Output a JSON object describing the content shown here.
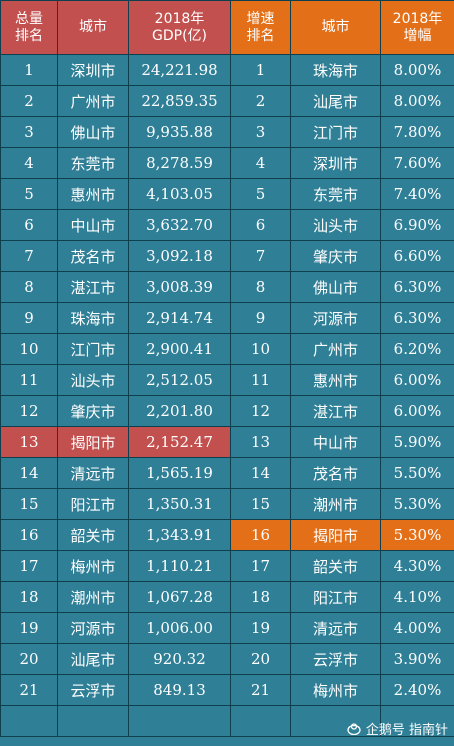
{
  "headers": {
    "rank_total": "总量\n排名",
    "city_left": "城市",
    "gdp": "2018年\nGDP(亿)",
    "rank_speed": "增速\n排名",
    "city_right": "城市",
    "growth": "2018年\n增幅"
  },
  "highlight": {
    "left_row": 13,
    "right_row": 16
  },
  "rows": [
    {
      "rank_total": "1",
      "city_left": "深圳市",
      "gdp": "24,221.98",
      "rank_speed": "1",
      "city_right": "珠海市",
      "growth": "8.00%"
    },
    {
      "rank_total": "2",
      "city_left": "广州市",
      "gdp": "22,859.35",
      "rank_speed": "2",
      "city_right": "汕尾市",
      "growth": "8.00%"
    },
    {
      "rank_total": "3",
      "city_left": "佛山市",
      "gdp": "9,935.88",
      "rank_speed": "3",
      "city_right": "江门市",
      "growth": "7.80%"
    },
    {
      "rank_total": "4",
      "city_left": "东莞市",
      "gdp": "8,278.59",
      "rank_speed": "4",
      "city_right": "深圳市",
      "growth": "7.60%"
    },
    {
      "rank_total": "5",
      "city_left": "惠州市",
      "gdp": "4,103.05",
      "rank_speed": "5",
      "city_right": "东莞市",
      "growth": "7.40%"
    },
    {
      "rank_total": "6",
      "city_left": "中山市",
      "gdp": "3,632.70",
      "rank_speed": "6",
      "city_right": "汕头市",
      "growth": "6.90%"
    },
    {
      "rank_total": "7",
      "city_left": "茂名市",
      "gdp": "3,092.18",
      "rank_speed": "7",
      "city_right": "肇庆市",
      "growth": "6.60%"
    },
    {
      "rank_total": "8",
      "city_left": "湛江市",
      "gdp": "3,008.39",
      "rank_speed": "8",
      "city_right": "佛山市",
      "growth": "6.30%"
    },
    {
      "rank_total": "9",
      "city_left": "珠海市",
      "gdp": "2,914.74",
      "rank_speed": "9",
      "city_right": "河源市",
      "growth": "6.30%"
    },
    {
      "rank_total": "10",
      "city_left": "江门市",
      "gdp": "2,900.41",
      "rank_speed": "10",
      "city_right": "广州市",
      "growth": "6.20%"
    },
    {
      "rank_total": "11",
      "city_left": "汕头市",
      "gdp": "2,512.05",
      "rank_speed": "11",
      "city_right": "惠州市",
      "growth": "6.00%"
    },
    {
      "rank_total": "12",
      "city_left": "肇庆市",
      "gdp": "2,201.80",
      "rank_speed": "12",
      "city_right": "湛江市",
      "growth": "6.00%"
    },
    {
      "rank_total": "13",
      "city_left": "揭阳市",
      "gdp": "2,152.47",
      "rank_speed": "13",
      "city_right": "中山市",
      "growth": "5.90%"
    },
    {
      "rank_total": "14",
      "city_left": "清远市",
      "gdp": "1,565.19",
      "rank_speed": "14",
      "city_right": "茂名市",
      "growth": "5.50%"
    },
    {
      "rank_total": "15",
      "city_left": "阳江市",
      "gdp": "1,350.31",
      "rank_speed": "15",
      "city_right": "潮州市",
      "growth": "5.30%"
    },
    {
      "rank_total": "16",
      "city_left": "韶关市",
      "gdp": "1,343.91",
      "rank_speed": "16",
      "city_right": "揭阳市",
      "growth": "5.30%"
    },
    {
      "rank_total": "17",
      "city_left": "梅州市",
      "gdp": "1,110.21",
      "rank_speed": "17",
      "city_right": "韶关市",
      "growth": "4.30%"
    },
    {
      "rank_total": "18",
      "city_left": "潮州市",
      "gdp": "1,067.28",
      "rank_speed": "18",
      "city_right": "阳江市",
      "growth": "4.10%"
    },
    {
      "rank_total": "19",
      "city_left": "河源市",
      "gdp": "1,006.00",
      "rank_speed": "19",
      "city_right": "清远市",
      "growth": "4.00%"
    },
    {
      "rank_total": "20",
      "city_left": "汕尾市",
      "gdp": "920.32",
      "rank_speed": "20",
      "city_right": "云浮市",
      "growth": "3.90%"
    },
    {
      "rank_total": "21",
      "city_left": "云浮市",
      "gdp": "849.13",
      "rank_speed": "21",
      "city_right": "梅州市",
      "growth": "2.40%"
    }
  ],
  "watermark": {
    "text": "企鹅号 指南针",
    "icon": "penguin-logo-icon"
  },
  "colors": {
    "background": "#2f7f97",
    "border": "#0f3e4c",
    "header_left": "#c1504e",
    "header_right": "#e37019",
    "highlight_left": "#c1504e",
    "highlight_right": "#e37019"
  }
}
